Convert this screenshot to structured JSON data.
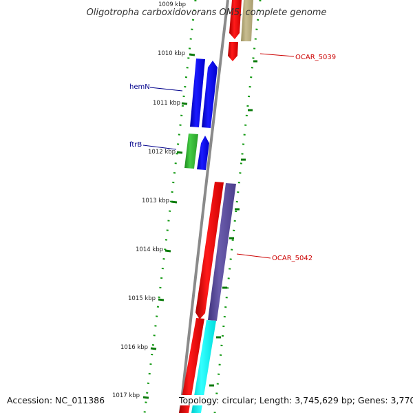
{
  "title": "Oligotropha carboxidovorans OM5, complete genome",
  "footer": {
    "accession": "Accession: NC_011386",
    "topology": "Topology: circular; Length: 3,745,629 bp; Genes: 3,770"
  },
  "ticks": [
    "1009 kbp",
    "1010 kbp",
    "1011 kbp",
    "1012 kbp",
    "1013 kbp",
    "1014 kbp",
    "1015 kbp",
    "1016 kbp",
    "1017 kbp"
  ],
  "gene_labels": [
    {
      "text": "OCAR_5039",
      "color": "#cc0000"
    },
    {
      "text": "hemN",
      "color": "#00008b"
    },
    {
      "text": "ftrB",
      "color": "#00008b"
    },
    {
      "text": "OCAR_5042",
      "color": "#cc0000"
    }
  ],
  "colors": {
    "backbone": "#808080",
    "tick": "#006400",
    "red": "#ff0000",
    "blue": "#0000ff",
    "green": "#33bb33",
    "olive": "#b8ad80",
    "purple": "#5a4c9c",
    "cyan": "#00ffff"
  }
}
